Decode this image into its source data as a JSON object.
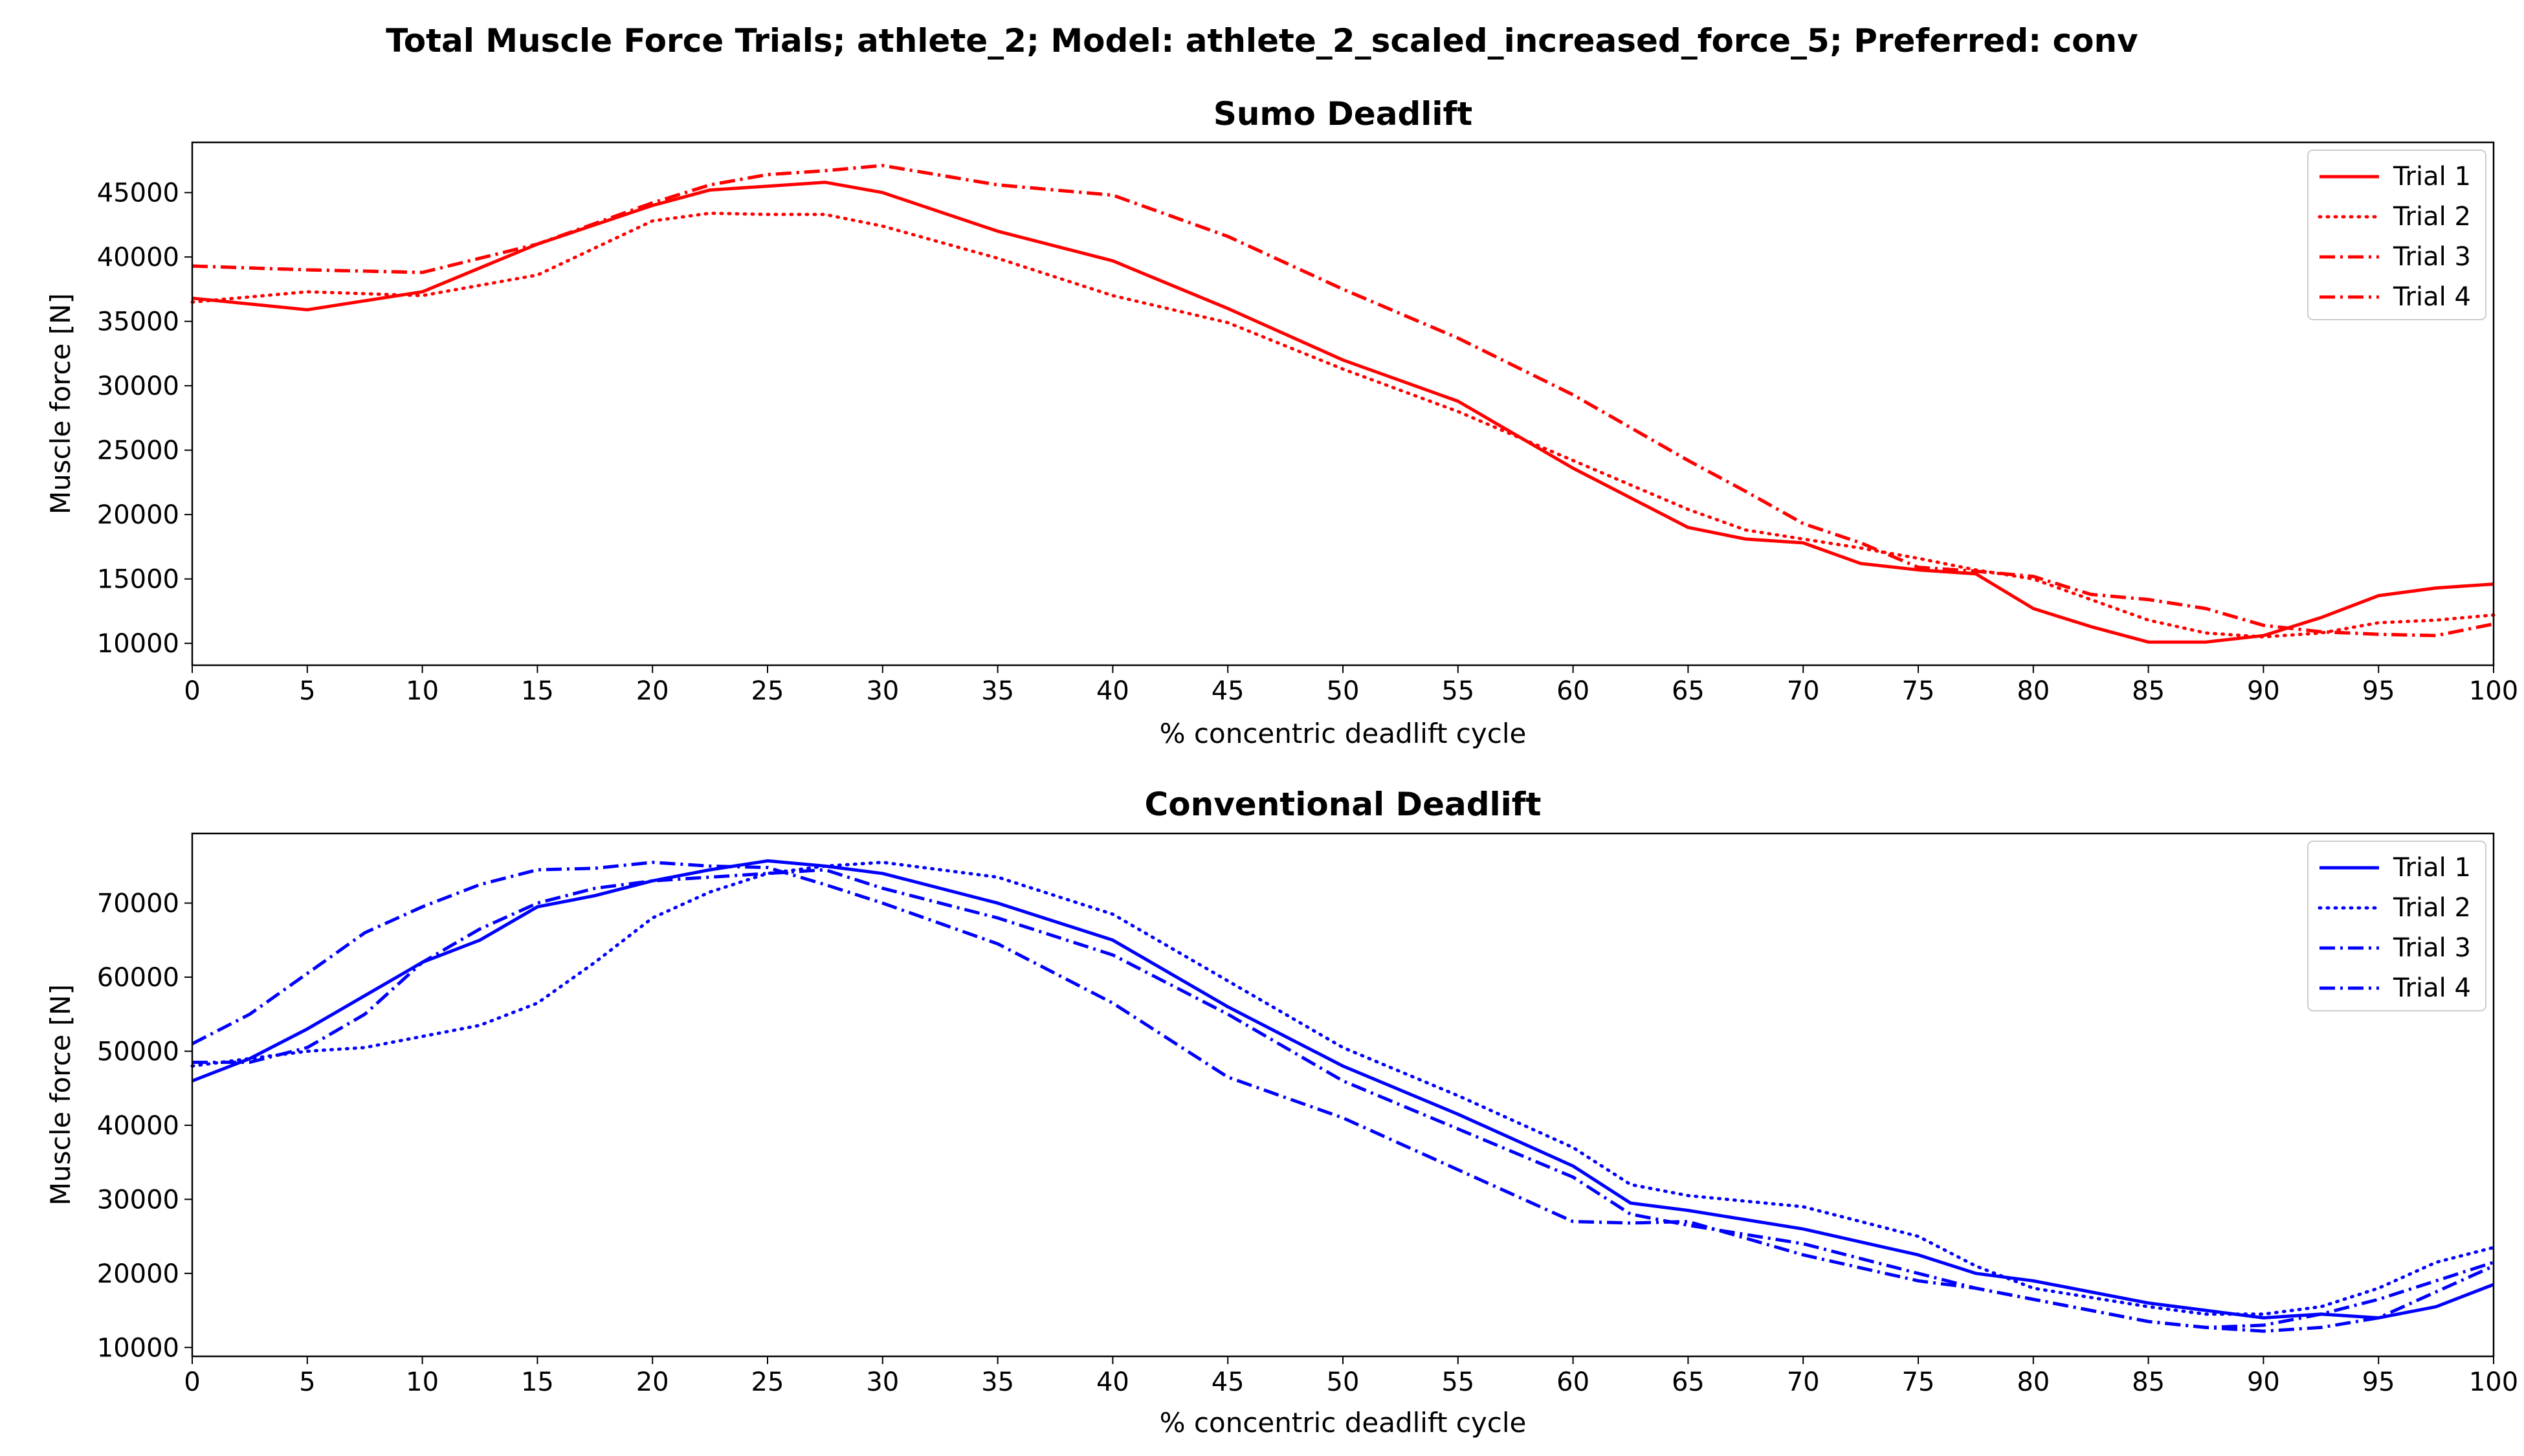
{
  "figure": {
    "suptitle": "Total Muscle Force Trials; athlete_2; Model: athlete_2_scaled_increased_force_5; Preferred: conv"
  },
  "chart_data": [
    {
      "type": "line",
      "title": "Sumo Deadlift",
      "xlabel": "% concentric deadlift cycle",
      "ylabel": "Muscle force [N]",
      "xlim": [
        0,
        100
      ],
      "ylim": [
        8300,
        48900
      ],
      "xticks": [
        0,
        5,
        10,
        15,
        20,
        25,
        30,
        35,
        40,
        45,
        50,
        55,
        60,
        65,
        70,
        75,
        80,
        85,
        90,
        95,
        100
      ],
      "yticks": [
        10000,
        15000,
        20000,
        25000,
        30000,
        35000,
        40000,
        45000
      ],
      "color": "#ff0000",
      "legend_position": "top-right",
      "x": [
        0,
        5,
        10,
        15,
        20,
        22.5,
        25,
        27.5,
        30,
        35,
        40,
        45,
        50,
        55,
        60,
        65,
        67.5,
        70,
        72.5,
        75,
        77.5,
        80,
        82.5,
        85,
        87.5,
        90,
        92.5,
        95,
        97.5,
        100
      ],
      "series": [
        {
          "name": "Trial 1",
          "dash": "solid",
          "values": [
            36800,
            35900,
            37300,
            41000,
            44000,
            45200,
            45500,
            45800,
            45000,
            42000,
            39700,
            36000,
            32000,
            28800,
            23600,
            19000,
            18100,
            17800,
            16200,
            15700,
            15400,
            12700,
            11300,
            10100,
            10100,
            10600,
            12000,
            13700,
            14300,
            14600
          ]
        },
        {
          "name": "Trial 2",
          "dash": "dotted",
          "values": [
            36500,
            37300,
            37000,
            38600,
            42800,
            43400,
            43300,
            43300,
            42400,
            39900,
            37000,
            34900,
            31300,
            28000,
            24200,
            20400,
            18800,
            18100,
            17400,
            16600,
            15700,
            15000,
            13400,
            11800,
            10800,
            10500,
            10800,
            11600,
            11800,
            12200
          ]
        },
        {
          "name": "Trial 3",
          "dash": "dashdot",
          "values": [
            39300,
            39000,
            38800,
            41000,
            44200,
            45600,
            46400,
            46700,
            47100,
            45600,
            44800,
            41600,
            37500,
            33700,
            29300,
            24200,
            21800,
            19300,
            17800,
            15900,
            15600,
            15200,
            13800,
            13400,
            12700,
            11400,
            10900,
            10700,
            10600,
            11500
          ]
        },
        {
          "name": "Trial 4",
          "dash": "dashdot",
          "values": [
            39300,
            39000,
            38800,
            41000,
            44200,
            45600,
            46400,
            46700,
            47100,
            45600,
            44800,
            41600,
            37500,
            33700,
            29300,
            24200,
            21800,
            19300,
            17800,
            15900,
            15600,
            15200,
            13800,
            13400,
            12700,
            11400,
            10900,
            10700,
            10600,
            11500
          ]
        }
      ]
    },
    {
      "type": "line",
      "title": "Conventional Deadlift",
      "xlabel": "% concentric deadlift cycle",
      "ylabel": "Muscle force [N]",
      "xlim": [
        0,
        100
      ],
      "ylim": [
        8800,
        79400
      ],
      "xticks": [
        0,
        5,
        10,
        15,
        20,
        25,
        30,
        35,
        40,
        45,
        50,
        55,
        60,
        65,
        70,
        75,
        80,
        85,
        90,
        95,
        100
      ],
      "yticks": [
        10000,
        20000,
        30000,
        40000,
        50000,
        60000,
        70000
      ],
      "color": "#0000ff",
      "legend_position": "top-right",
      "x": [
        0,
        2.5,
        5,
        7.5,
        10,
        12.5,
        15,
        17.5,
        20,
        22.5,
        25,
        27.5,
        30,
        35,
        40,
        45,
        50,
        55,
        60,
        62.5,
        65,
        70,
        75,
        77.5,
        80,
        85,
        87.5,
        90,
        92.5,
        95,
        97.5,
        100
      ],
      "series": [
        {
          "name": "Trial 1",
          "dash": "solid",
          "values": [
            46000,
            49000,
            53000,
            57500,
            62000,
            65000,
            69500,
            71000,
            73000,
            74500,
            75700,
            75000,
            74000,
            70000,
            65000,
            56000,
            48000,
            41500,
            34500,
            29500,
            28500,
            26000,
            22500,
            20000,
            19000,
            16000,
            15000,
            14000,
            14500,
            14000,
            15500,
            18500
          ]
        },
        {
          "name": "Trial 2",
          "dash": "dotted",
          "values": [
            48000,
            49000,
            50000,
            50500,
            52000,
            53500,
            56500,
            62000,
            68000,
            71500,
            74000,
            75000,
            75500,
            73500,
            68500,
            59500,
            50500,
            44000,
            37000,
            32000,
            30500,
            29000,
            25000,
            21000,
            18000,
            15500,
            14500,
            14500,
            15500,
            18000,
            21500,
            23500
          ]
        },
        {
          "name": "Trial 3",
          "dash": "dashdot",
          "values": [
            48500,
            48500,
            50500,
            55000,
            62000,
            66500,
            70000,
            72000,
            73000,
            73500,
            74000,
            74500,
            72000,
            68000,
            63000,
            55000,
            46000,
            39500,
            33000,
            28000,
            26500,
            24000,
            20000,
            18000,
            16500,
            13500,
            12700,
            13000,
            14500,
            16500,
            19000,
            21500
          ]
        },
        {
          "name": "Trial 4",
          "dash": "dashdot",
          "values": [
            51000,
            55000,
            60500,
            66000,
            69500,
            72500,
            74500,
            74700,
            75500,
            75000,
            74800,
            72500,
            70000,
            64500,
            56500,
            46500,
            41000,
            34000,
            27000,
            26800,
            27000,
            22500,
            19000,
            18000,
            16500,
            13500,
            12700,
            12200,
            12700,
            14000,
            17500,
            21000
          ]
        }
      ]
    }
  ]
}
